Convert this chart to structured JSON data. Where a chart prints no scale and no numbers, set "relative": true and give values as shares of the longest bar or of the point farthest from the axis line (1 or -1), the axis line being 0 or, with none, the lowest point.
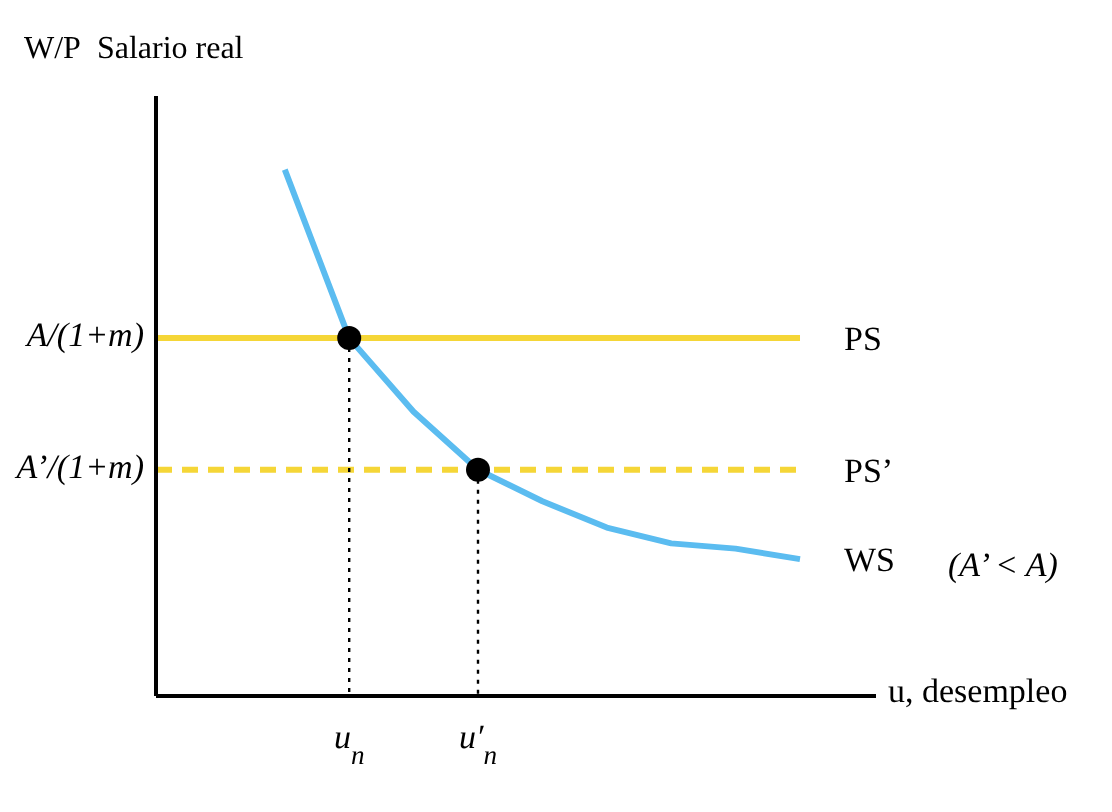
{
  "chart_data": {
    "type": "line",
    "ylabel": "Salario real",
    "xlabel": "u, desempleo",
    "relative": true,
    "grid": false,
    "legend": false,
    "marker": "none",
    "categories": [
      null,
      null,
      null,
      "u$_{n}$",
      null,
      "u′$_{n}$",
      null,
      null,
      null,
      null,
      null
    ],
    "annotations": [
      "W/P",
      "(A’ < A)",
      "A/(1+m)",
      "A’/(1+m)"
    ],
    "series": [
      {
        "name": "PS",
        "color": "#f5d637",
        "line_style": "solid",
        "values": [
          0.68,
          0.68,
          0.68,
          0.68,
          0.68,
          0.68,
          0.68,
          0.68,
          0.68,
          0.68,
          0.68
        ]
      },
      {
        "name": "PS’",
        "color": "#f5d637",
        "line_style": "dashed",
        "values": [
          0.43,
          0.43,
          0.43,
          0.43,
          0.43,
          0.43,
          0.43,
          0.43,
          0.43,
          0.43,
          0.43
        ]
      },
      {
        "name": "WS",
        "color": "#5bbcf0",
        "line_style": "solid",
        "values": [
          null,
          null,
          1,
          0.68,
          0.54,
          0.43,
          0.37,
          0.32,
          0.29,
          0.28,
          0.26
        ]
      },
      {
        "type": "scatter",
        "color": "#000000",
        "marker": "circle",
        "line_style": "dotted",
        "values": [
          null,
          null,
          null,
          0.68,
          null,
          0.43,
          null,
          null,
          null,
          null,
          null
        ]
      }
    ]
  }
}
